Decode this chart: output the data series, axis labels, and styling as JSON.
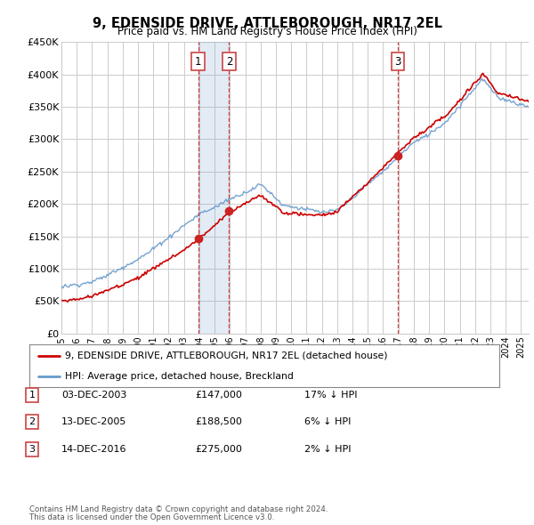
{
  "title": "9, EDENSIDE DRIVE, ATTLEBOROUGH, NR17 2EL",
  "subtitle": "Price paid vs. HM Land Registry's House Price Index (HPI)",
  "ylabel_ticks": [
    "£0",
    "£50K",
    "£100K",
    "£150K",
    "£200K",
    "£250K",
    "£300K",
    "£350K",
    "£400K",
    "£450K"
  ],
  "ylim": [
    0,
    450000
  ],
  "xlim_start": 1995.0,
  "xlim_end": 2025.5,
  "sale_dates": [
    2003.92,
    2005.95,
    2016.95
  ],
  "sale_prices": [
    147000,
    188500,
    275000
  ],
  "sale_labels": [
    "1",
    "2",
    "3"
  ],
  "legend_line1": "9, EDENSIDE DRIVE, ATTLEBOROUGH, NR17 2EL (detached house)",
  "legend_line2": "HPI: Average price, detached house, Breckland",
  "table_data": [
    [
      "1",
      "03-DEC-2003",
      "£147,000",
      "17% ↓ HPI"
    ],
    [
      "2",
      "13-DEC-2005",
      "£188,500",
      "6% ↓ HPI"
    ],
    [
      "3",
      "14-DEC-2016",
      "£275,000",
      "2% ↓ HPI"
    ]
  ],
  "footnote1": "Contains HM Land Registry data © Crown copyright and database right 2024.",
  "footnote2": "This data is licensed under the Open Government Licence v3.0.",
  "color_sale": "#cc0000",
  "color_hpi": "#6699cc",
  "color_highlight": "#ddeeff",
  "color_vline": "#cc4444",
  "grid_color": "#cccccc",
  "background_color": "#ffffff"
}
